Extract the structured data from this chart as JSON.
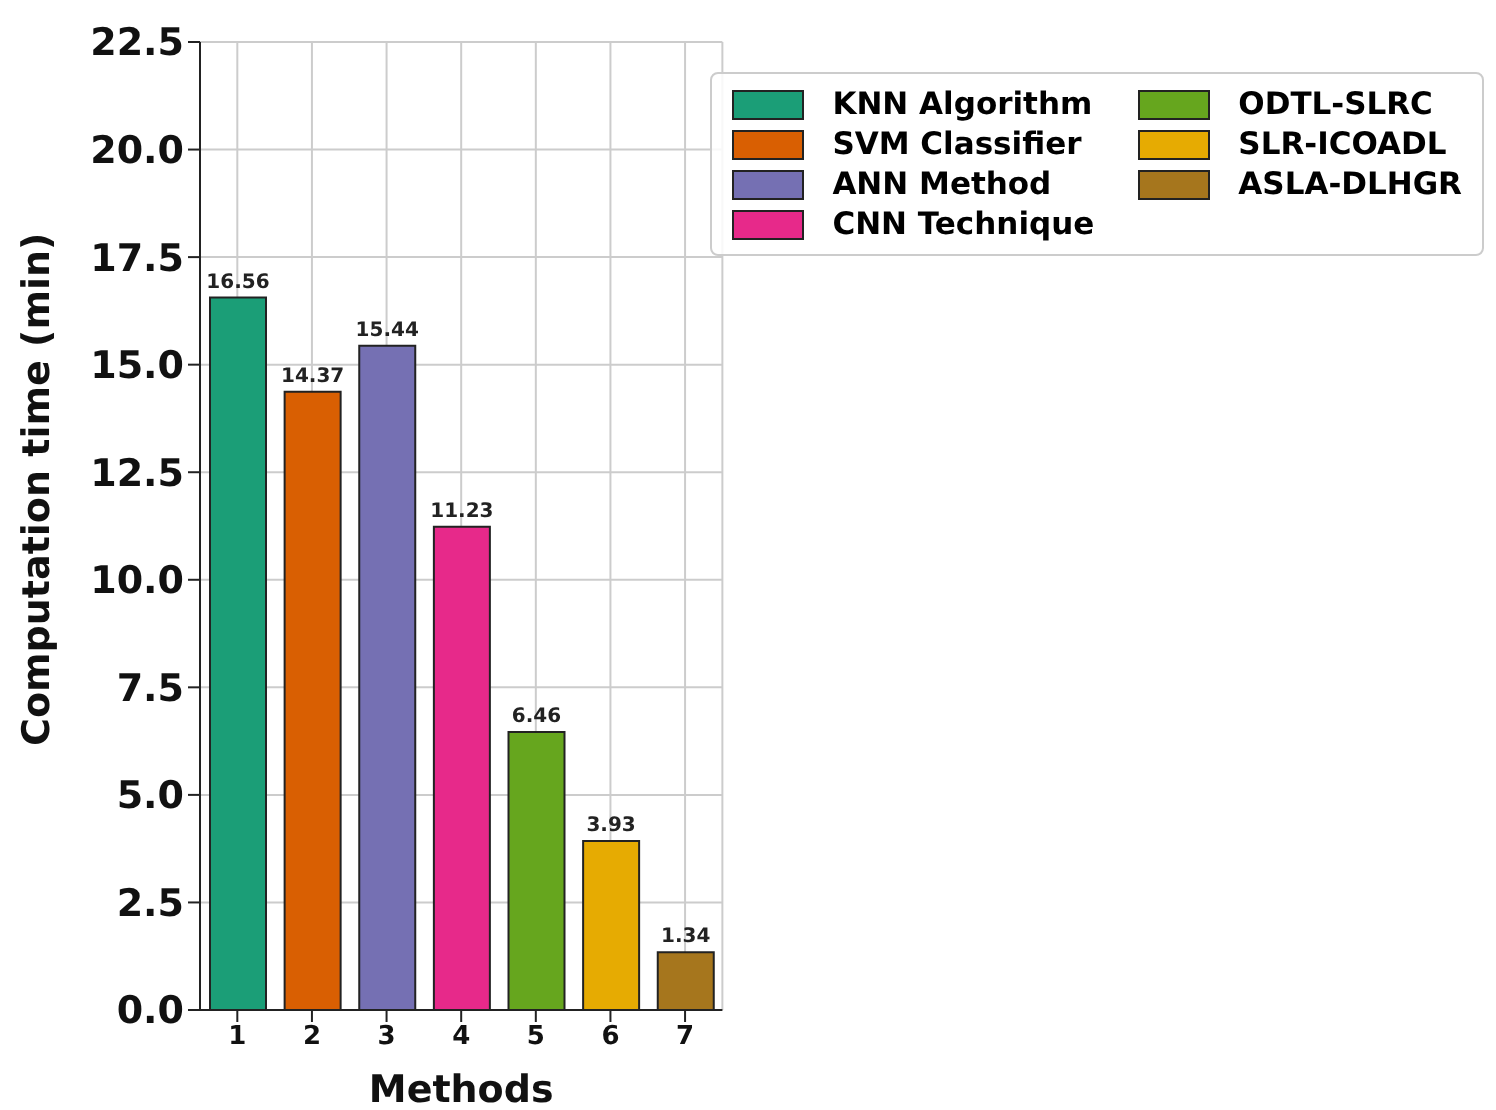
{
  "chart_data": {
    "type": "bar",
    "xlabel": "Methods",
    "ylabel": "Computation time (min)",
    "categories": [
      "1",
      "2",
      "3",
      "4",
      "5",
      "6",
      "7"
    ],
    "series": [
      {
        "name": "KNN Algorithm",
        "color": "#1b9e77",
        "values": [
          16.56,
          null,
          null,
          null,
          null,
          null,
          null
        ]
      },
      {
        "name": "SVM Classifier",
        "color": "#d95f02",
        "values": [
          null,
          14.37,
          null,
          null,
          null,
          null,
          null
        ]
      },
      {
        "name": "ANN Method",
        "color": "#7570b3",
        "values": [
          null,
          null,
          15.44,
          null,
          null,
          null,
          null
        ]
      },
      {
        "name": "CNN Technique",
        "color": "#e7298a",
        "values": [
          null,
          null,
          null,
          11.23,
          null,
          null,
          null
        ]
      },
      {
        "name": "ODTL-SLRC",
        "color": "#66a61e",
        "values": [
          null,
          null,
          null,
          null,
          6.46,
          null,
          null
        ]
      },
      {
        "name": "SLR-ICOADL",
        "color": "#e6ab02",
        "values": [
          null,
          null,
          null,
          null,
          null,
          3.93,
          null
        ]
      },
      {
        "name": "ASLA-DLHGR",
        "color": "#a6761d",
        "values": [
          null,
          null,
          null,
          null,
          null,
          null,
          1.34
        ]
      }
    ],
    "ylim": [
      0,
      22.5
    ],
    "yticks": [
      {
        "value": 0,
        "label": "0.0"
      },
      {
        "value": 2.5,
        "label": "2.5"
      },
      {
        "value": 5,
        "label": "5.0"
      },
      {
        "value": 7.5,
        "label": "7.5"
      },
      {
        "value": 10,
        "label": "10.0"
      },
      {
        "value": 12.5,
        "label": "12.5"
      },
      {
        "value": 15,
        "label": "15.0"
      },
      {
        "value": 17.5,
        "label": "17.5"
      },
      {
        "value": 20,
        "label": "20.0"
      },
      {
        "value": 22.5,
        "label": "22.5"
      }
    ],
    "grid": true,
    "legend": "top right",
    "data_labels": true
  }
}
